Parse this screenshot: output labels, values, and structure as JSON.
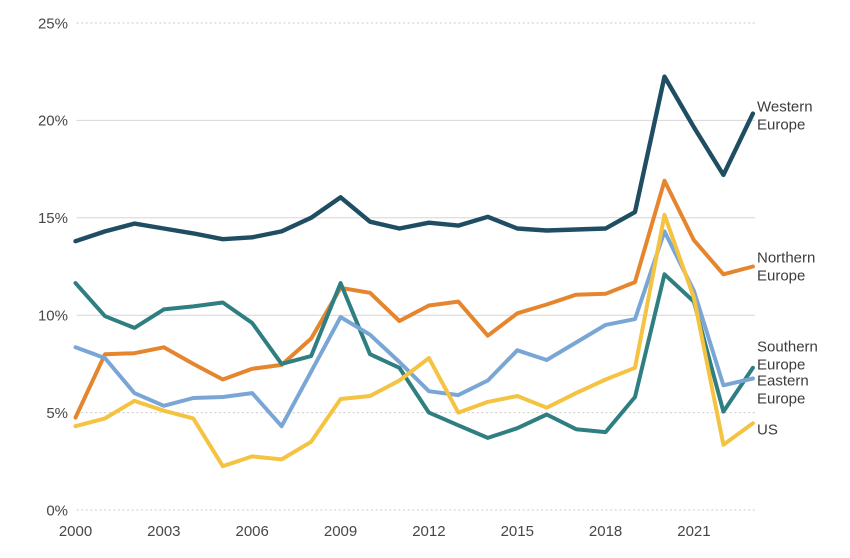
{
  "chart_data": {
    "type": "line",
    "title": "",
    "xlabel": "",
    "ylabel": "",
    "x": [
      2000,
      2001,
      2002,
      2003,
      2004,
      2005,
      2006,
      2007,
      2008,
      2009,
      2010,
      2011,
      2012,
      2013,
      2014,
      2015,
      2016,
      2017,
      2018,
      2019,
      2020,
      2021,
      2022,
      2023
    ],
    "x_tick_labels": [
      "2000",
      "2003",
      "2006",
      "2009",
      "2012",
      "2015",
      "2018",
      "2021"
    ],
    "x_tick_years": [
      2000,
      2003,
      2006,
      2009,
      2012,
      2015,
      2018,
      2021
    ],
    "y_tick_labels": [
      "0%",
      "5%",
      "10%",
      "15%",
      "20%",
      "25%"
    ],
    "y_tick_values": [
      0,
      5,
      10,
      15,
      20,
      25
    ],
    "ylim": [
      0,
      25
    ],
    "y_unit": "percent",
    "grid": "horizontal-only",
    "legend_position": "right-end-of-line-labels",
    "background_color": "#ffffff",
    "gridline_color_solid": "#d6d6d6",
    "gridline_color_dashed": "#cbcbcb",
    "tick_text_color": "#474747",
    "label_text_color": "#3d3d3d",
    "series": [
      {
        "name": "Western Europe",
        "label_lines": [
          "Western",
          "Europe"
        ],
        "color": "#1f4e63",
        "values": [
          13.8,
          14.3,
          14.7,
          14.45,
          14.2,
          13.9,
          14.0,
          14.3,
          15.0,
          16.05,
          14.8,
          14.45,
          14.75,
          14.6,
          15.05,
          14.45,
          14.35,
          14.4,
          14.45,
          15.3,
          22.25,
          19.65,
          17.2,
          20.35
        ]
      },
      {
        "name": "Northern Europe",
        "label_lines": [
          "Northern",
          "Europe"
        ],
        "color": "#e5862f",
        "values": [
          4.75,
          8.0,
          8.05,
          8.35,
          7.5,
          6.7,
          7.25,
          7.45,
          8.8,
          11.4,
          11.15,
          9.7,
          10.5,
          10.7,
          8.95,
          10.1,
          10.55,
          11.05,
          11.1,
          11.7,
          16.9,
          13.85,
          12.1,
          12.5
        ]
      },
      {
        "name": "Southern Europe",
        "label_lines": [
          "Southern",
          "Europe"
        ],
        "color": "#2f7f82",
        "values": [
          11.65,
          9.95,
          9.35,
          10.3,
          10.45,
          10.65,
          9.6,
          7.5,
          7.9,
          11.65,
          8.0,
          7.3,
          5.0,
          4.35,
          3.7,
          4.2,
          4.9,
          4.15,
          4.0,
          5.8,
          12.1,
          10.7,
          5.05,
          7.3
        ]
      },
      {
        "name": "Eastern Europe",
        "label_lines": [
          "Eastern",
          "Europe"
        ],
        "color": "#7aa6d6",
        "values": [
          8.35,
          7.8,
          6.0,
          5.35,
          5.75,
          5.8,
          6.0,
          4.3,
          7.1,
          9.9,
          9.0,
          7.6,
          6.1,
          5.9,
          6.65,
          8.2,
          7.7,
          8.6,
          9.5,
          9.8,
          14.3,
          11.25,
          6.4,
          6.75
        ]
      },
      {
        "name": "US",
        "label_lines": [
          "US"
        ],
        "color": "#f5c342",
        "values": [
          4.3,
          4.7,
          5.6,
          5.1,
          4.7,
          2.25,
          2.75,
          2.6,
          3.5,
          5.7,
          5.85,
          6.65,
          7.8,
          5.0,
          5.55,
          5.85,
          5.25,
          6.0,
          6.7,
          7.3,
          15.15,
          10.9,
          3.35,
          4.45
        ]
      }
    ]
  }
}
